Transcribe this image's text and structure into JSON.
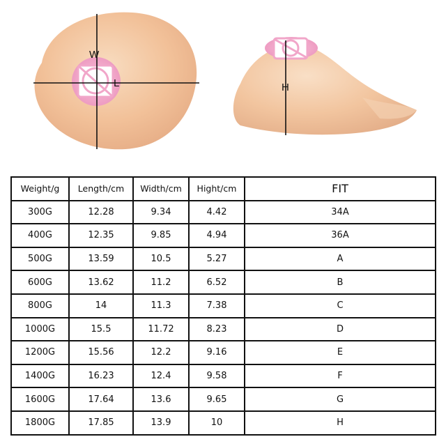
{
  "figure": {
    "width_label": "W",
    "length_label": "L",
    "height_label": "H",
    "colors": {
      "skin": "#f2c199",
      "skin_light": "#f7d6b8",
      "skin_shadow": "#e2a882",
      "pink": "#f1a6c9",
      "line": "#111111"
    }
  },
  "table": {
    "headers": [
      "Weight/g",
      "Length/cm",
      "Width/cm",
      "Hight/cm",
      "FIT"
    ],
    "rows": [
      [
        "300G",
        "12.28",
        "9.34",
        "4.42",
        "34A"
      ],
      [
        "400G",
        "12.35",
        "9.85",
        "4.94",
        "36A"
      ],
      [
        "500G",
        "13.59",
        "10.5",
        "5.27",
        "A"
      ],
      [
        "600G",
        "13.62",
        "11.2",
        "6.52",
        "B"
      ],
      [
        "800G",
        "14",
        "11.3",
        "7.38",
        "C"
      ],
      [
        "1000G",
        "15.5",
        "11.72",
        "8.23",
        "D"
      ],
      [
        "1200G",
        "15.56",
        "12.2",
        "9.16",
        "E"
      ],
      [
        "1400G",
        "16.23",
        "12.4",
        "9.58",
        "F"
      ],
      [
        "1600G",
        "17.64",
        "13.6",
        "9.65",
        "G"
      ],
      [
        "1800G",
        "17.85",
        "13.9",
        "10",
        "H"
      ]
    ]
  }
}
